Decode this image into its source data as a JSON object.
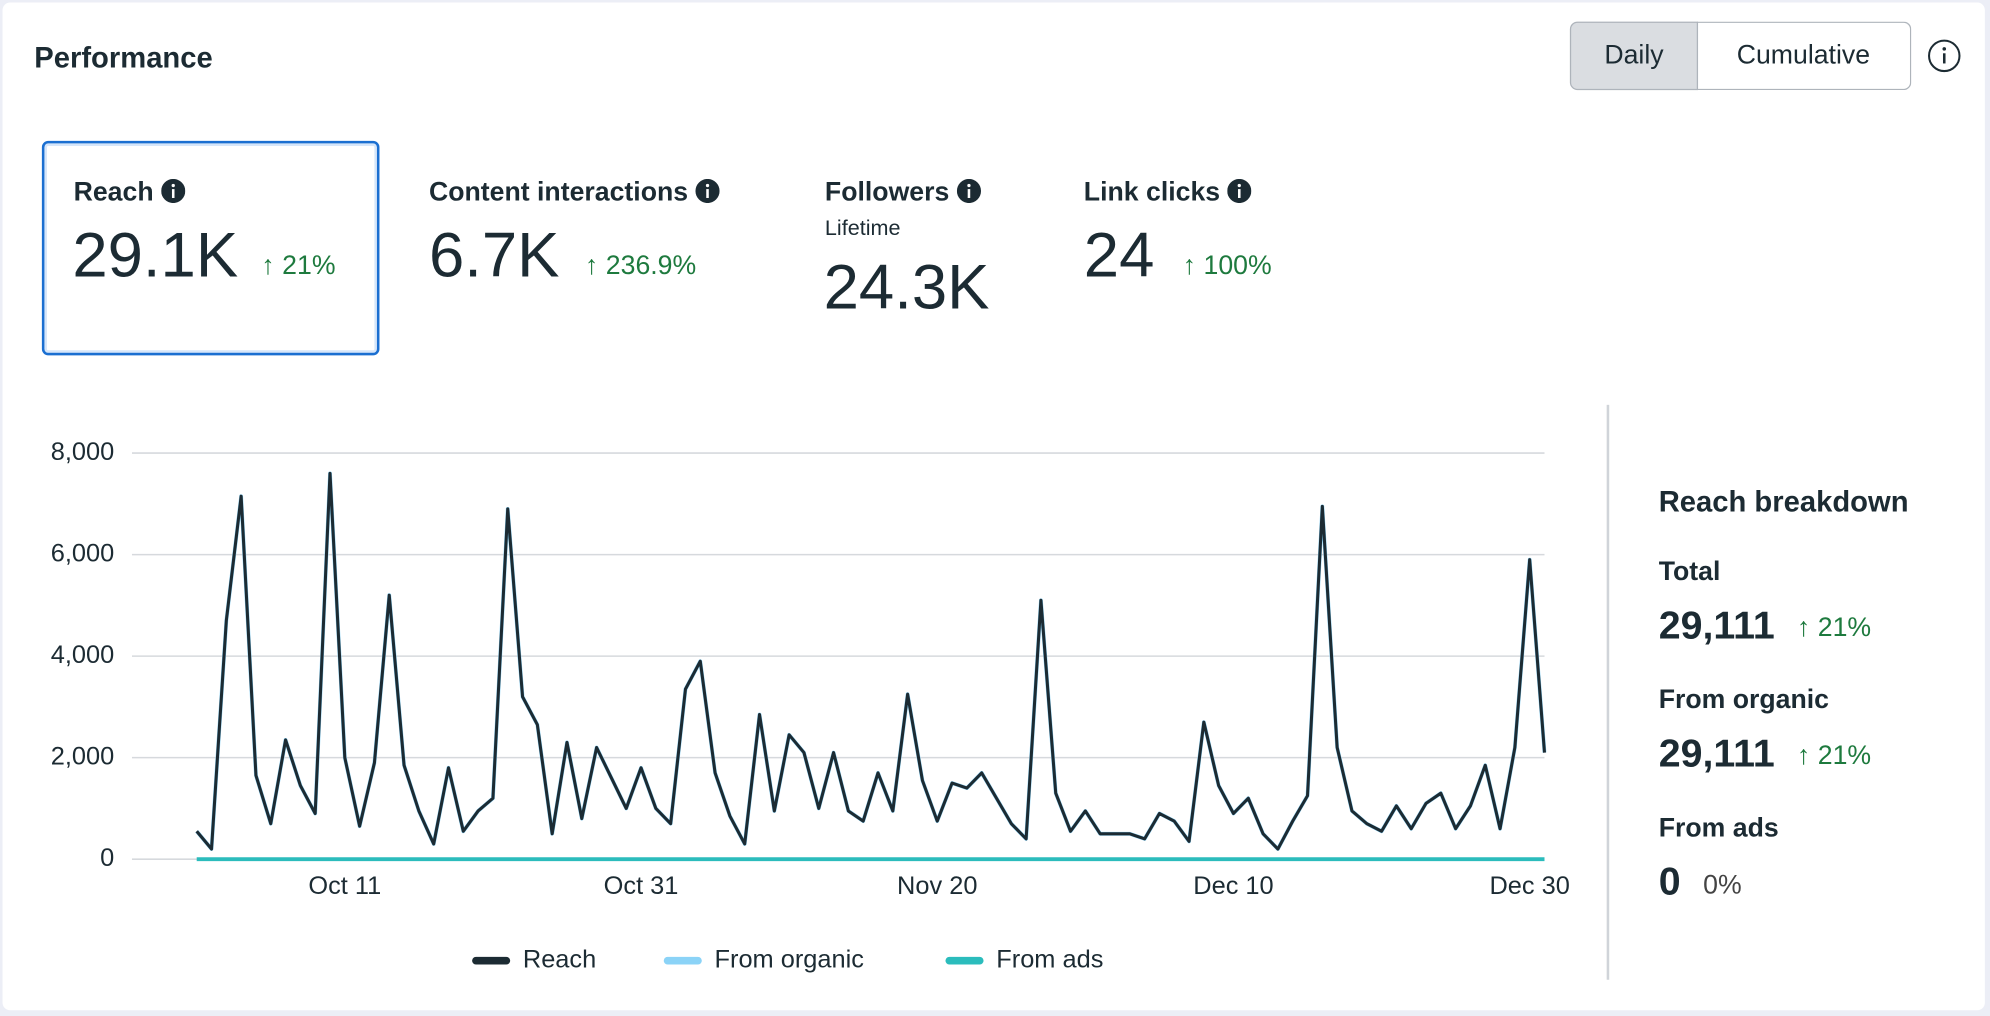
{
  "header": {
    "title": "Performance",
    "toggle": [
      "Daily",
      "Cumulative"
    ]
  },
  "metrics": [
    {
      "label": "Reach",
      "value": "29.1K",
      "change": "21%"
    },
    {
      "label": "Content interactions",
      "value": "6.7K",
      "change": "236.9%"
    },
    {
      "label": "Followers",
      "sublabel": "Lifetime",
      "value": "24.3K"
    },
    {
      "label": "Link clicks",
      "value": "24",
      "change": "100%"
    }
  ],
  "chart_data": {
    "type": "line",
    "categories": [
      null,
      null,
      null,
      null,
      null,
      null,
      null,
      null,
      null,
      null,
      "Oct 11",
      null,
      null,
      null,
      null,
      null,
      null,
      null,
      null,
      null,
      null,
      null,
      null,
      null,
      null,
      null,
      null,
      null,
      null,
      null,
      "Oct 31",
      null,
      null,
      null,
      null,
      null,
      null,
      null,
      null,
      null,
      null,
      null,
      null,
      null,
      null,
      null,
      null,
      null,
      null,
      null,
      "Nov 20",
      null,
      null,
      null,
      null,
      null,
      null,
      null,
      null,
      null,
      null,
      null,
      null,
      null,
      null,
      null,
      null,
      null,
      null,
      null,
      "Dec 10",
      null,
      null,
      null,
      null,
      null,
      null,
      null,
      null,
      null,
      null,
      null,
      null,
      null,
      null,
      null,
      null,
      null,
      null,
      null,
      "Dec 30",
      null
    ],
    "ylim": [
      0,
      8000
    ],
    "yticks": [
      0,
      {
        "value": 2000,
        "label": "2,000"
      },
      {
        "value": 4000,
        "label": "4,000"
      },
      {
        "value": 6000,
        "label": "6,000"
      },
      {
        "value": 8000,
        "label": "8,000"
      }
    ],
    "grid": true,
    "series": [
      {
        "name": "Reach",
        "color": "#1c2b33",
        "values": [
          550,
          200,
          4700,
          7150,
          1650,
          700,
          2350,
          1450,
          900,
          7600,
          2000,
          650,
          1900,
          5200,
          1850,
          950,
          300,
          1800,
          550,
          950,
          1200,
          6900,
          3200,
          2650,
          500,
          2300,
          800,
          2200,
          1600,
          1000,
          1800,
          1000,
          700,
          3350,
          3900,
          1700,
          850,
          300,
          2850,
          950,
          2450,
          2100,
          1000,
          2100,
          950,
          750,
          1700,
          950,
          3250,
          1550,
          750,
          1500,
          1400,
          1700,
          1200,
          700,
          400,
          5100,
          1300,
          550,
          950,
          500,
          500,
          500,
          400,
          900,
          750,
          350,
          2700,
          1450,
          900,
          1200,
          500,
          200,
          750,
          1250,
          6950,
          2200,
          950,
          700,
          550,
          1050,
          600,
          1100,
          1300,
          600,
          1050,
          1850,
          600,
          2200,
          5900,
          2100
        ]
      },
      {
        "name": "From organic",
        "color": "#8bd3f7",
        "values": [
          550,
          200,
          4700,
          7150,
          1650,
          700,
          2350,
          1450,
          900,
          7600,
          2000,
          650,
          1900,
          5200,
          1850,
          950,
          300,
          1800,
          550,
          950,
          1200,
          6900,
          3200,
          2650,
          500,
          2300,
          800,
          2200,
          1600,
          1000,
          1800,
          1000,
          700,
          3350,
          3900,
          1700,
          850,
          300,
          2850,
          950,
          2450,
          2100,
          1000,
          2100,
          950,
          750,
          1700,
          950,
          3250,
          1550,
          750,
          1500,
          1400,
          1700,
          1200,
          700,
          400,
          5100,
          1300,
          550,
          950,
          500,
          500,
          500,
          400,
          900,
          750,
          350,
          2700,
          1450,
          900,
          1200,
          500,
          200,
          750,
          1250,
          6950,
          2200,
          950,
          700,
          550,
          1050,
          600,
          1100,
          1300,
          600,
          1050,
          1850,
          600,
          2200,
          5900,
          2100
        ]
      },
      {
        "name": "From ads",
        "color": "#2bbcbc",
        "values": [
          0,
          0,
          0,
          0,
          0,
          0,
          0,
          0,
          0,
          0,
          0,
          0,
          0,
          0,
          0,
          0,
          0,
          0,
          0,
          0,
          0,
          0,
          0,
          0,
          0,
          0,
          0,
          0,
          0,
          0,
          0,
          0,
          0,
          0,
          0,
          0,
          0,
          0,
          0,
          0,
          0,
          0,
          0,
          0,
          0,
          0,
          0,
          0,
          0,
          0,
          0,
          0,
          0,
          0,
          0,
          0,
          0,
          0,
          0,
          0,
          0,
          0,
          0,
          0,
          0,
          0,
          0,
          0,
          0,
          0,
          0,
          0,
          0,
          0,
          0,
          0,
          0,
          0,
          0,
          0,
          0,
          0,
          0,
          0,
          0,
          0,
          0,
          0,
          0,
          0,
          0,
          0
        ]
      }
    ]
  },
  "breakdown": {
    "title": "Reach breakdown",
    "items": [
      {
        "label": "Total",
        "value": "29,111",
        "change": "21%"
      },
      {
        "label": "From organic",
        "value": "29,111",
        "change": "21%"
      },
      {
        "label": "From ads",
        "value": "0",
        "change": "0%"
      }
    ]
  }
}
